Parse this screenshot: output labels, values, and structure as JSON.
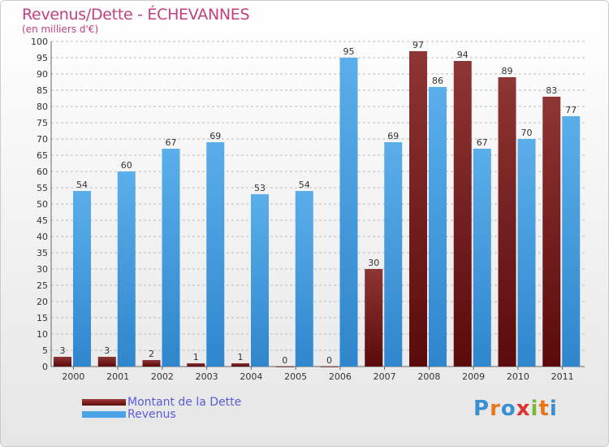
{
  "header": {
    "title": "Revenus/Dette - ÉCHEVANNES",
    "subtitle": "(en milliers d'€)"
  },
  "legend": {
    "debt_label": "Montant de la Dette",
    "revenue_label": "Revenus"
  },
  "logo": {
    "text": "Proxiti"
  },
  "colors": {
    "debt": "#8b2a2a",
    "revenue": "#4aa3e6",
    "title": "#c04080",
    "grid": "#bbbbbb"
  },
  "chart_data": {
    "type": "bar",
    "title": "Revenus/Dette - ÉCHEVANNES",
    "ylabel": "(en milliers d'€)",
    "categories": [
      "2000",
      "2001",
      "2002",
      "2003",
      "2004",
      "2005",
      "2006",
      "2007",
      "2008",
      "2009",
      "2010",
      "2011"
    ],
    "series": [
      {
        "name": "Montant de la Dette",
        "values": [
          3,
          3,
          2,
          1,
          1,
          0,
          0,
          30,
          97,
          94,
          89,
          83
        ]
      },
      {
        "name": "Revenus",
        "values": [
          54,
          60,
          67,
          69,
          53,
          54,
          95,
          69,
          86,
          67,
          70,
          77
        ]
      }
    ],
    "ylim": [
      0,
      100
    ],
    "ytick_step": 5,
    "grid": true,
    "legend_position": "bottom-left"
  }
}
